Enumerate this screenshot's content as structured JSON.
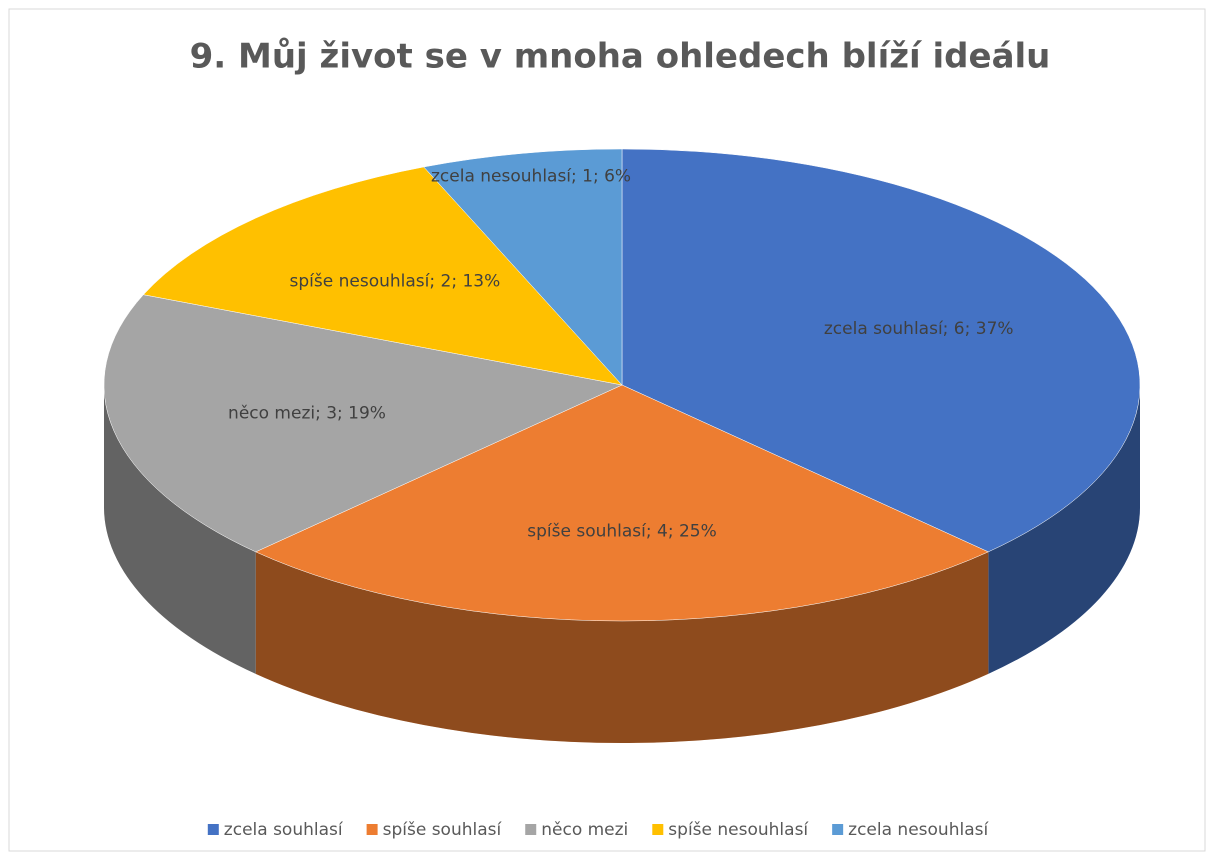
{
  "chart_data": {
    "type": "pie",
    "title": "9. Můj život se v mnoha ohledech blíží ideálu",
    "categories": [
      "zcela souhlasí",
      "spíše souhlasí",
      "něco mezi",
      "spíše nesouhlasí",
      "zcela nesouhlasí"
    ],
    "values": [
      6,
      4,
      3,
      2,
      1
    ],
    "value_labels": [
      "zcela souhlasí; 6; 37%",
      "spíše souhlasí; 4; 25%",
      "něco mezi; 3; 19%",
      "spíše nesouhlasí; 2; 13%",
      "zcela nesouhlasí; 1; 6%"
    ],
    "colors": [
      "#4472c4",
      "#ed7d31",
      "#a5a5a5",
      "#ffc000",
      "#5b9bd5"
    ],
    "legend": "bottom"
  }
}
